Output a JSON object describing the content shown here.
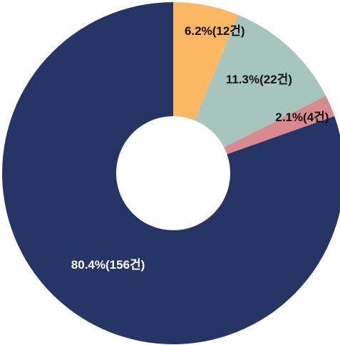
{
  "chart_data": {
    "type": "pie",
    "donut": true,
    "categories": [
      "",
      "",
      "",
      ""
    ],
    "values": [
      12,
      22,
      4,
      156
    ],
    "percentages": [
      6.2,
      11.3,
      2.1,
      80.4
    ],
    "labels": [
      "6.2%(12건)",
      "11.3%(22건)",
      "2.1%(4건)",
      "80.4%(156건)"
    ],
    "colors": [
      "#fbb762",
      "#a6c6bd",
      "#d98a8f",
      "#253565"
    ],
    "label_colors": [
      "#111111",
      "#111111",
      "#111111",
      "#ffffff"
    ],
    "start": "top",
    "direction": "clockwise",
    "legend": "none"
  }
}
